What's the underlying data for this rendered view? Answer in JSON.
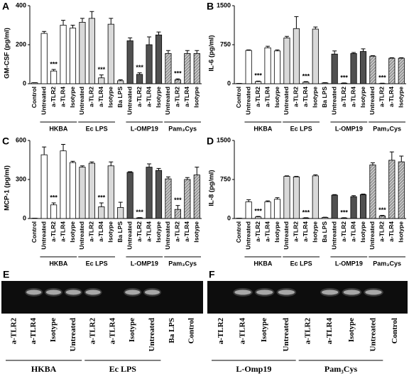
{
  "chart_data": [
    {
      "type": "bar",
      "panel": "A",
      "ylabel": "GM-CSF (pg/ml)",
      "categories": [
        "Control",
        "Untreated",
        "a-TLR2",
        "a-TLR4",
        "Isotype",
        "Untreated",
        "a-TLR2",
        "a-TLR4",
        "Isotype",
        "Ba LPS",
        "Untreated",
        "a-TLR2",
        "a-TLR4",
        "Isotype",
        "Untreated",
        "a-TLR2",
        "a-TLR4",
        "Isotype"
      ],
      "values": [
        5,
        258,
        65,
        300,
        285,
        315,
        335,
        30,
        305,
        15,
        220,
        48,
        200,
        250,
        155,
        20,
        155,
        155
      ],
      "errors": [
        0,
        10,
        8,
        25,
        15,
        20,
        35,
        15,
        30,
        5,
        15,
        8,
        40,
        15,
        15,
        5,
        15,
        15
      ],
      "significance": [
        null,
        null,
        "***",
        null,
        null,
        null,
        null,
        "***",
        null,
        null,
        null,
        "***",
        null,
        null,
        null,
        "***",
        null,
        null
      ],
      "colors": [
        "#ffffff",
        "#ffffff",
        "#ffffff",
        "#ffffff",
        "#ffffff",
        "#d9d9d9",
        "#d9d9d9",
        "#d9d9d9",
        "#d9d9d9",
        "#d9d9d9",
        "#505050",
        "#505050",
        "#505050",
        "#505050",
        "#c4c4c4",
        "#c4c4c4",
        "#c4c4c4",
        "#c4c4c4"
      ],
      "groups": [
        {
          "label": "HKBA",
          "first": 1,
          "last": 4,
          "hatch": false
        },
        {
          "label": "Ec LPS",
          "first": 5,
          "last": 8,
          "hatch": false
        },
        {
          "label": "L-OMP19",
          "first": 10,
          "last": 13,
          "hatch": false
        },
        {
          "label": "Pam₃Cys",
          "first": 14,
          "last": 17,
          "hatch": true
        }
      ],
      "ylim": [
        0,
        400
      ],
      "yticks": [
        0,
        200,
        400
      ]
    },
    {
      "type": "bar",
      "panel": "B",
      "ylabel": "IL-6 (pg/ml)",
      "categories": [
        "Control",
        "Untreated",
        "a-TLR2",
        "a-TLR4",
        "Isotype",
        "Untreated",
        "a-TLR2",
        "a-TLR4",
        "Isotype",
        "Ba LPS",
        "Untreated",
        "a-TLR2",
        "a-TLR4",
        "Isotype",
        "Untreated",
        "a-TLR2",
        "a-TLR4",
        "Isotype"
      ],
      "values": [
        5,
        640,
        40,
        690,
        630,
        880,
        1060,
        30,
        1050,
        15,
        570,
        10,
        580,
        620,
        530,
        5,
        490,
        490
      ],
      "errors": [
        0,
        10,
        10,
        30,
        20,
        30,
        230,
        10,
        40,
        5,
        60,
        5,
        20,
        50,
        10,
        5,
        10,
        10
      ],
      "significance": [
        null,
        null,
        "***",
        null,
        null,
        null,
        null,
        "***",
        null,
        null,
        null,
        "***",
        null,
        null,
        null,
        "***",
        null,
        null
      ],
      "colors": [
        "#ffffff",
        "#ffffff",
        "#ffffff",
        "#ffffff",
        "#ffffff",
        "#d9d9d9",
        "#d9d9d9",
        "#d9d9d9",
        "#d9d9d9",
        "#d9d9d9",
        "#505050",
        "#505050",
        "#505050",
        "#505050",
        "#c4c4c4",
        "#c4c4c4",
        "#c4c4c4",
        "#c4c4c4"
      ],
      "groups": [
        {
          "label": "HKBA",
          "first": 1,
          "last": 4,
          "hatch": false
        },
        {
          "label": "Ec LPS",
          "first": 5,
          "last": 8,
          "hatch": false
        },
        {
          "label": "L-OMP19",
          "first": 10,
          "last": 13,
          "hatch": false
        },
        {
          "label": "Pam₃Cys",
          "first": 14,
          "last": 17,
          "hatch": true
        }
      ],
      "ylim": [
        0,
        1500
      ],
      "yticks": [
        0,
        750,
        1500
      ]
    },
    {
      "type": "bar",
      "panel": "C",
      "ylabel": "MCP-1 (pg/ml)",
      "categories": [
        "Control",
        "Untreated",
        "a-TLR2",
        "a-TLR4",
        "Isotype",
        "Untreated",
        "a-TLR2",
        "a-TLR4",
        "Isotype",
        "Ba LPS",
        "Untreated",
        "a-TLR2",
        "a-TLR4",
        "Isotype",
        "Untreated",
        "a-TLR2",
        "a-TLR4",
        "Isotype"
      ],
      "values": [
        2,
        490,
        105,
        520,
        430,
        395,
        425,
        90,
        405,
        85,
        355,
        5,
        395,
        370,
        305,
        70,
        300,
        335
      ],
      "errors": [
        0,
        60,
        15,
        50,
        10,
        10,
        10,
        30,
        30,
        40,
        5,
        2,
        25,
        15,
        15,
        30,
        15,
        60
      ],
      "significance": [
        null,
        null,
        "***",
        null,
        null,
        null,
        null,
        "***",
        null,
        null,
        null,
        "***",
        null,
        null,
        null,
        "***",
        null,
        null
      ],
      "colors": [
        "#ffffff",
        "#ffffff",
        "#ffffff",
        "#ffffff",
        "#ffffff",
        "#d9d9d9",
        "#d9d9d9",
        "#d9d9d9",
        "#d9d9d9",
        "#d9d9d9",
        "#505050",
        "#505050",
        "#505050",
        "#505050",
        "#c4c4c4",
        "#c4c4c4",
        "#c4c4c4",
        "#c4c4c4"
      ],
      "groups": [
        {
          "label": "HKBA",
          "first": 1,
          "last": 4,
          "hatch": false
        },
        {
          "label": "Ec LPS",
          "first": 5,
          "last": 8,
          "hatch": false
        },
        {
          "label": "L-OMP19",
          "first": 10,
          "last": 13,
          "hatch": false
        },
        {
          "label": "Pam₃Cys",
          "first": 14,
          "last": 17,
          "hatch": true
        }
      ],
      "ylim": [
        0,
        600
      ],
      "yticks": [
        0,
        300,
        600
      ]
    },
    {
      "type": "bar",
      "panel": "D",
      "ylabel": "IL-8 (pg/ml)",
      "categories": [
        "Control",
        "Untreated",
        "a-TLR2",
        "a-TLR4",
        "Isotype",
        "Untreated",
        "a-TLR2",
        "a-TLR4",
        "Isotype",
        "Ba LPS",
        "Untreated",
        "a-TLR2",
        "a-TLR4",
        "Isotype",
        "Untreated",
        "a-TLR2",
        "a-TLR4",
        "Isotype"
      ],
      "values": [
        5,
        320,
        30,
        320,
        370,
        810,
        800,
        10,
        820,
        20,
        450,
        10,
        420,
        460,
        1030,
        50,
        1120,
        1090
      ],
      "errors": [
        0,
        40,
        10,
        20,
        30,
        10,
        10,
        5,
        20,
        5,
        10,
        5,
        20,
        10,
        40,
        10,
        160,
        110
      ],
      "significance": [
        null,
        null,
        "***",
        null,
        null,
        null,
        null,
        "***",
        null,
        null,
        null,
        "***",
        null,
        null,
        null,
        "***",
        null,
        null
      ],
      "colors": [
        "#ffffff",
        "#ffffff",
        "#ffffff",
        "#ffffff",
        "#ffffff",
        "#d9d9d9",
        "#d9d9d9",
        "#d9d9d9",
        "#d9d9d9",
        "#d9d9d9",
        "#505050",
        "#505050",
        "#505050",
        "#505050",
        "#c4c4c4",
        "#c4c4c4",
        "#c4c4c4",
        "#c4c4c4"
      ],
      "groups": [
        {
          "label": "HKBA",
          "first": 1,
          "last": 4,
          "hatch": false
        },
        {
          "label": "Ec LPS",
          "first": 5,
          "last": 8,
          "hatch": false
        },
        {
          "label": "L-OMP19",
          "first": 10,
          "last": 13,
          "hatch": false
        },
        {
          "label": "Pam₃Cys",
          "first": 14,
          "last": 17,
          "hatch": true
        }
      ],
      "ylim": [
        0,
        1500
      ],
      "yticks": [
        0,
        750,
        1500
      ]
    }
  ],
  "gels": [
    {
      "panel": "E",
      "lanes": [
        "a-TLR2",
        "a-TLR4",
        "Isotype",
        "Untreated",
        "a-TLR2",
        "a-TLR4",
        "Isotype",
        "Untreated",
        "Ba LPS",
        "Control"
      ],
      "groups": [
        {
          "label": "HKBA",
          "first": 0,
          "last": 3
        },
        {
          "label": "Ec LPS",
          "first": 4,
          "last": 7
        }
      ]
    },
    {
      "panel": "F",
      "lanes": [
        "a-TLR2",
        "a-TLR4",
        "Isotype",
        "Untreated",
        "a-TLR2",
        "a-TLR4",
        "Isotype",
        "Untreated",
        "Control"
      ],
      "groups": [
        {
          "label": "L-Omp19",
          "first": 0,
          "last": 3
        },
        {
          "label": "Pam₃Cys",
          "first": 4,
          "last": 7
        }
      ]
    }
  ]
}
